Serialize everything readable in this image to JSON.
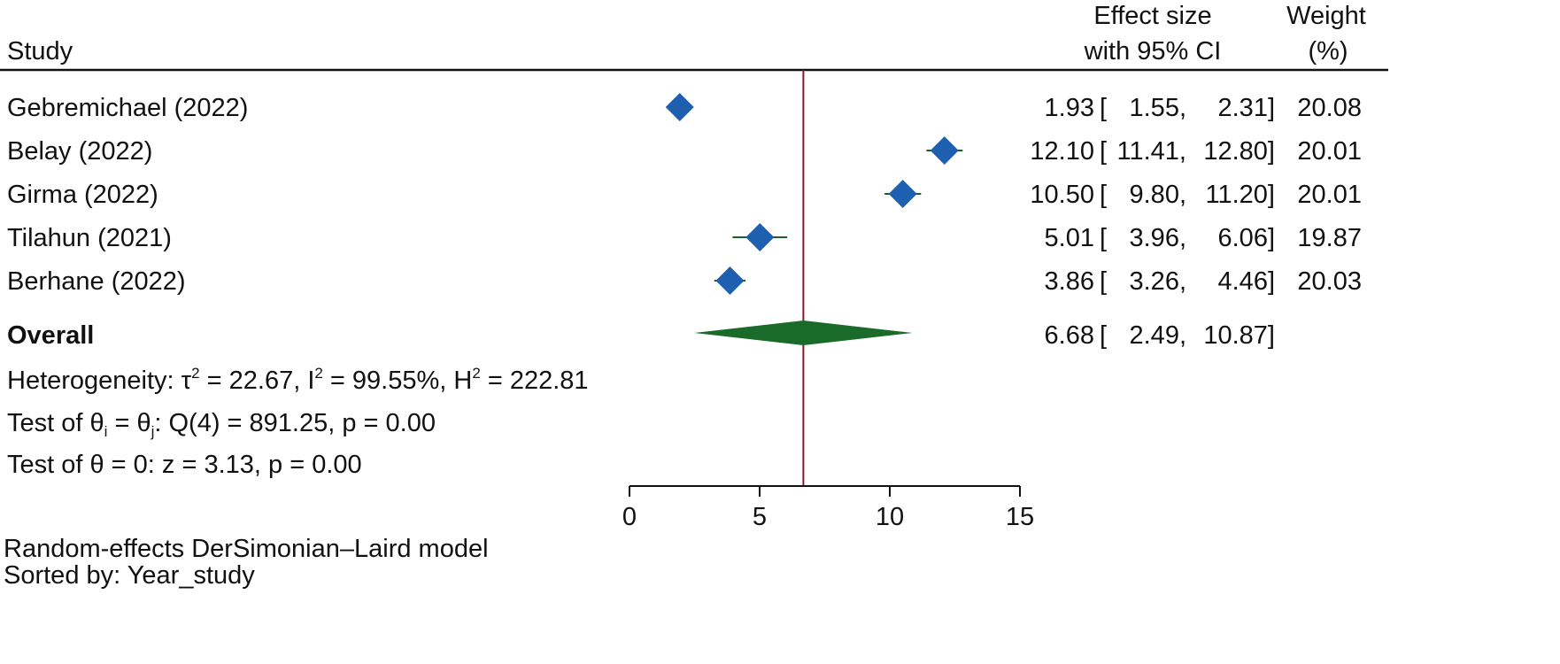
{
  "chart_data": {
    "type": "forest",
    "header": {
      "study": "Study",
      "effect_line1": "Effect size",
      "effect_line2": "with 95% CI",
      "weight_line1": "Weight",
      "weight_line2": "(%)"
    },
    "studies": [
      {
        "name": "Gebremichael (2022)",
        "es": 1.93,
        "lo": 1.55,
        "hi": 2.31,
        "es_text": "1.93",
        "lo_text": "1.55,",
        "hi_text": "2.31]",
        "weight": "20.08"
      },
      {
        "name": "Belay (2022)",
        "es": 12.1,
        "lo": 11.41,
        "hi": 12.8,
        "es_text": "12.10",
        "lo_text": "11.41,",
        "hi_text": "12.80]",
        "weight": "20.01"
      },
      {
        "name": "Girma (2022)",
        "es": 10.5,
        "lo": 9.8,
        "hi": 11.2,
        "es_text": "10.50",
        "lo_text": "9.80,",
        "hi_text": "11.20]",
        "weight": "20.01"
      },
      {
        "name": "Tilahun (2021)",
        "es": 5.01,
        "lo": 3.96,
        "hi": 6.06,
        "es_text": "5.01",
        "lo_text": "3.96,",
        "hi_text": "6.06]",
        "weight": "19.87"
      },
      {
        "name": "Berhane (2022)",
        "es": 3.86,
        "lo": 3.26,
        "hi": 4.46,
        "es_text": "3.86",
        "lo_text": "3.26,",
        "hi_text": "4.46]",
        "weight": "20.03"
      }
    ],
    "overall": {
      "label": "Overall",
      "es": 6.68,
      "lo": 2.49,
      "hi": 10.87,
      "es_text": "6.68",
      "lo_text": "2.49,",
      "hi_text": "10.87]"
    },
    "bracket_open": "[",
    "heterogeneity": {
      "prefix": "Heterogeneity: τ",
      "tau_sup": "2",
      "tau_val": " = 22.67, I",
      "i_sup": "2",
      "i_val": " = 99.55%, H",
      "h_sup": "2",
      "h_val": " = 222.81"
    },
    "test_equal": {
      "prefix": "Test of θ",
      "sub_i": "i",
      "mid": " = θ",
      "sub_j": "j",
      "rest": ": Q(4) = 891.25, p = 0.00"
    },
    "test_zero": "Test of θ = 0: z = 3.13, p = 0.00",
    "x_axis": {
      "ticks": [
        0,
        5,
        10,
        15
      ],
      "range": [
        0,
        15
      ]
    },
    "footnote_model": "Random-effects DerSimonian–Laird model",
    "footnote_sort": "Sorted by: Year_study",
    "colors": {
      "marker": "#1f5fb0",
      "ci_line": "#1a5e2a",
      "overall": "#1a6b2a",
      "ref_line": "#8c1a2e",
      "axis": "#111111"
    }
  }
}
